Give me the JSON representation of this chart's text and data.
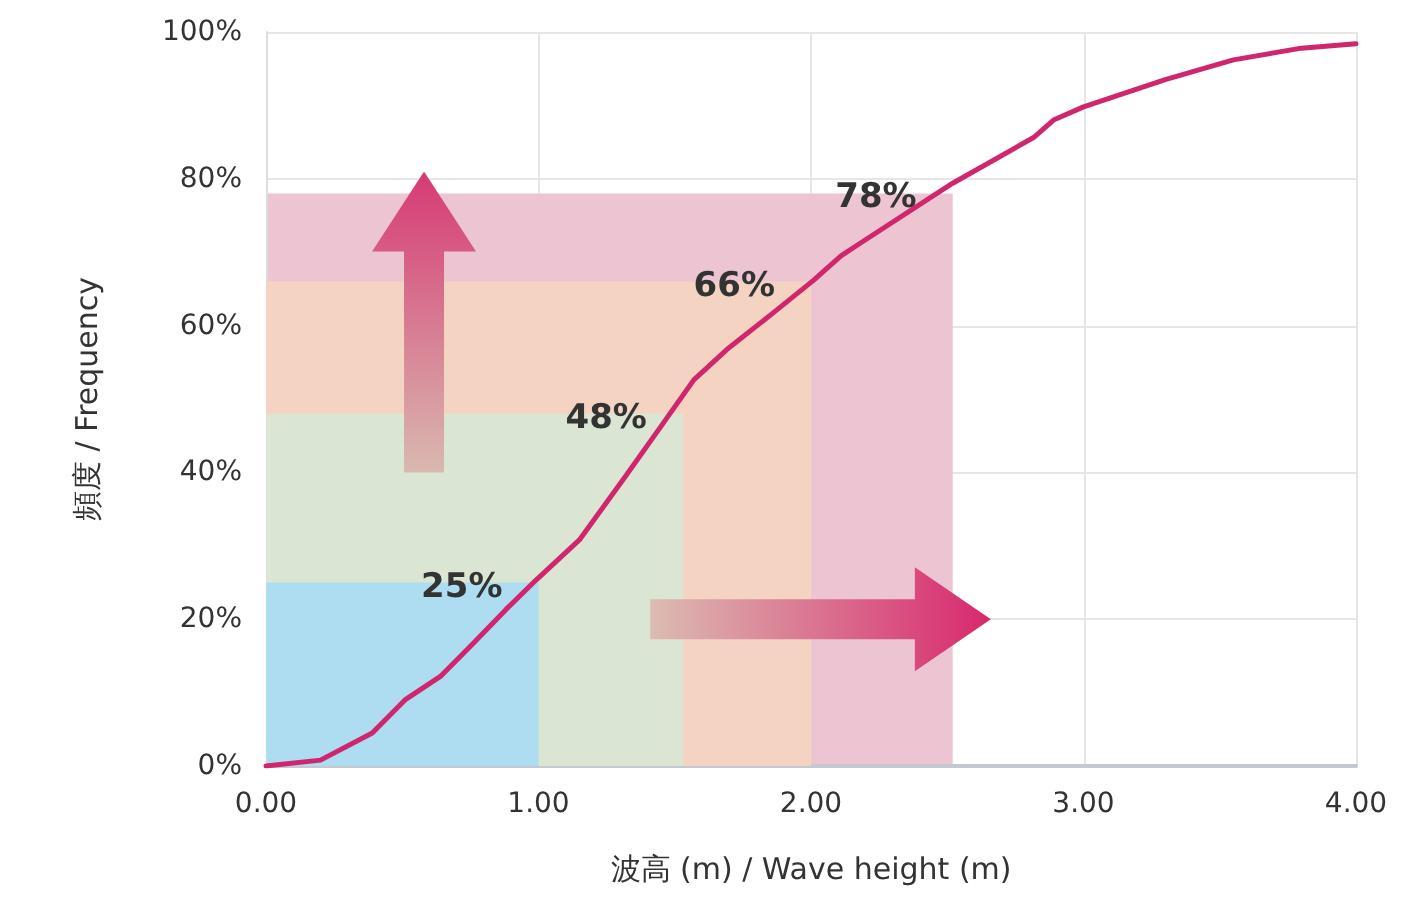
{
  "chart_data": {
    "type": "line",
    "xlabel": "波高 (m) / Wave height (m)",
    "ylabel": "頻度 / Frequency",
    "xlim": [
      0,
      4
    ],
    "ylim": [
      0,
      100
    ],
    "xticks": [
      {
        "value": 0,
        "label": "0.00"
      },
      {
        "value": 1,
        "label": "1.00"
      },
      {
        "value": 2,
        "label": "2.00"
      },
      {
        "value": 3,
        "label": "3.00"
      },
      {
        "value": 4,
        "label": "4.00"
      }
    ],
    "yticks": [
      {
        "value": 0,
        "label": "0%"
      },
      {
        "value": 20,
        "label": "20%"
      },
      {
        "value": 40,
        "label": "40%"
      },
      {
        "value": 60,
        "label": "60%"
      },
      {
        "value": 80,
        "label": "80%"
      },
      {
        "value": 100,
        "label": "100%"
      }
    ],
    "grid": true,
    "marker": "none",
    "line_style": "solid",
    "series": [
      {
        "type": "area",
        "color": "#edc5d2",
        "x": [
          0,
          2.52
        ],
        "values": [
          78,
          78
        ]
      },
      {
        "type": "area",
        "color": "#f5d3c3",
        "x": [
          0,
          2.0
        ],
        "values": [
          66,
          66
        ]
      },
      {
        "type": "area",
        "color": "#dbe5d3",
        "x": [
          0,
          1.53
        ],
        "values": [
          48,
          48
        ]
      },
      {
        "type": "area",
        "color": "#aedcf0",
        "x": [
          0,
          1.0
        ],
        "values": [
          25,
          25
        ]
      },
      {
        "color": "#d0266e",
        "x": [
          0,
          0.2,
          0.39,
          0.51,
          0.64,
          0.76,
          0.88,
          0.99,
          1.15,
          1.32,
          1.45,
          1.57,
          1.69,
          1.86,
          2.01,
          2.11,
          2.2,
          2.52,
          2.82,
          2.89,
          3.0,
          3.3,
          3.55,
          3.8,
          4.0
        ],
        "values": [
          0,
          0.8,
          4.5,
          9,
          12.2,
          16.7,
          21.3,
          25.3,
          30.8,
          39.5,
          46.3,
          52.6,
          56.7,
          61.7,
          66.2,
          69.5,
          71.7,
          79.4,
          85.7,
          88,
          89.8,
          93.5,
          96.2,
          97.8,
          98.4
        ]
      }
    ],
    "annotations": [
      {
        "text": "25%",
        "x": 1.0,
        "y": 25
      },
      {
        "text": "48%",
        "x": 1.53,
        "y": 48
      },
      {
        "text": "66%",
        "x": 2.0,
        "y": 66
      },
      {
        "text": "78%",
        "x": 2.52,
        "y": 78
      }
    ]
  }
}
